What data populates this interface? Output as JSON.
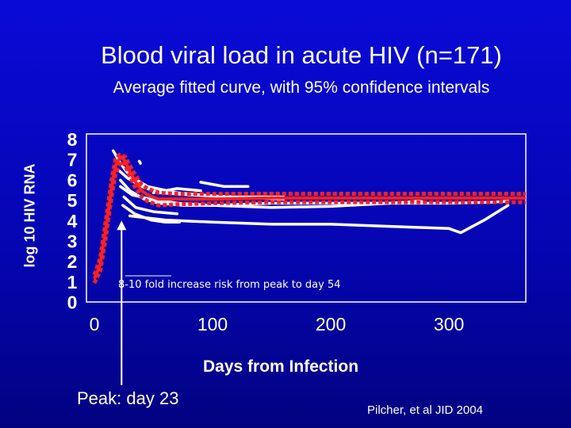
{
  "chart_data": {
    "type": "line",
    "title": "Blood viral load in acute HIV (n=171)",
    "subtitle": "Average fitted curve, with 95% confidence intervals",
    "xlabel": "Days from Infection",
    "ylabel": "log 10 HIV RNA",
    "xlim": [
      0,
      365
    ],
    "ylim": [
      0,
      8
    ],
    "x_ticks": [
      "0",
      "100",
      "200",
      "300"
    ],
    "x_tick_values": [
      0,
      100,
      200,
      300
    ],
    "y_ticks": [
      "8",
      "7",
      "6",
      "5",
      "4",
      "3",
      "2",
      "1",
      "0"
    ],
    "y_tick_values": [
      8,
      7,
      6,
      5,
      4,
      3,
      2,
      1,
      0
    ],
    "series": [
      {
        "name": "Average fitted curve",
        "x": [
          0,
          5,
          10,
          15,
          18,
          21,
          23,
          26,
          30,
          35,
          40,
          45,
          54,
          70,
          100,
          150,
          200,
          250,
          300,
          365
        ],
        "y": [
          1.1,
          1.8,
          3.6,
          5.6,
          6.5,
          6.8,
          6.9,
          6.7,
          6.2,
          5.7,
          5.3,
          5.1,
          4.9,
          4.9,
          4.9,
          4.95,
          4.95,
          4.95,
          4.95,
          4.95
        ]
      },
      {
        "name": "Upper 95% CI",
        "x": [
          0,
          5,
          10,
          15,
          18,
          21,
          23,
          26,
          30,
          35,
          40,
          45,
          54,
          70,
          100,
          150,
          200,
          250,
          300,
          365
        ],
        "y": [
          1.3,
          2.1,
          4.0,
          6.0,
          6.8,
          7.0,
          7.0,
          6.9,
          6.5,
          6.0,
          5.6,
          5.4,
          5.2,
          5.15,
          5.15,
          5.15,
          5.15,
          5.15,
          5.15,
          5.15
        ]
      },
      {
        "name": "Lower 95% CI",
        "x": [
          0,
          5,
          10,
          15,
          18,
          21,
          23,
          26,
          30,
          35,
          40,
          45,
          54,
          70,
          100,
          150,
          200,
          250,
          300,
          365
        ],
        "y": [
          0.9,
          1.5,
          3.2,
          5.2,
          6.1,
          6.5,
          6.7,
          6.5,
          6.0,
          5.4,
          5.0,
          4.8,
          4.6,
          4.65,
          4.7,
          4.75,
          4.75,
          4.75,
          4.75,
          4.75
        ]
      }
    ],
    "individual_traces": [
      {
        "x": [
          16,
          22,
          30,
          45,
          70,
          110,
          160
        ],
        "y": [
          7.2,
          6.6,
          6.0,
          5.5,
          5.2,
          5.0,
          4.9
        ]
      },
      {
        "x": [
          20,
          28,
          40,
          55,
          80,
          120,
          160
        ],
        "y": [
          6.3,
          5.9,
          5.5,
          5.2,
          5.1,
          5.0,
          5.0
        ]
      },
      {
        "x": [
          22,
          30,
          42,
          55,
          75,
          100,
          150,
          200,
          250,
          300,
          335,
          350
        ],
        "y": [
          5.8,
          5.3,
          4.9,
          4.7,
          4.6,
          4.6,
          4.7,
          4.7,
          4.7,
          4.7,
          4.75,
          4.8
        ]
      },
      {
        "x": [
          25,
          35,
          50,
          70
        ],
        "y": [
          5.0,
          4.5,
          4.3,
          4.2
        ]
      },
      {
        "x": [
          24,
          34,
          48,
          60,
          72
        ],
        "y": [
          4.6,
          4.2,
          3.9,
          3.8,
          3.8
        ]
      },
      {
        "x": [
          22,
          32,
          40,
          50,
          60,
          70,
          100,
          150,
          200,
          250,
          275,
          280
        ],
        "y": [
          5.5,
          5.1,
          5.0,
          4.85,
          4.8,
          4.7,
          4.6,
          4.5,
          4.55,
          4.7,
          4.8,
          4.75
        ]
      },
      {
        "x": [
          50,
          70,
          90
        ],
        "y": [
          5.2,
          5.4,
          5.3
        ]
      },
      {
        "x": [
          90,
          100,
          110,
          120,
          130
        ],
        "y": [
          5.7,
          5.6,
          5.5,
          5.5,
          5.5
        ]
      },
      {
        "x": [
          30,
          60,
          100,
          150,
          200,
          250,
          300,
          310,
          330,
          350
        ],
        "y": [
          4.1,
          3.9,
          3.8,
          3.7,
          3.7,
          3.6,
          3.5,
          3.3,
          3.9,
          4.6
        ]
      },
      {
        "x": [
          38,
          39
        ],
        "y": [
          6.7,
          6.6
        ]
      }
    ],
    "annotations": [
      {
        "text": "8-10 fold increase risk from peak to day 54",
        "x": 17,
        "y": 0.5
      },
      {
        "text": "Peak: day 23",
        "x": 23,
        "y": 3.8
      }
    ],
    "legend": "none",
    "grid": false
  },
  "citation": "Pilcher, et al JID 2004"
}
